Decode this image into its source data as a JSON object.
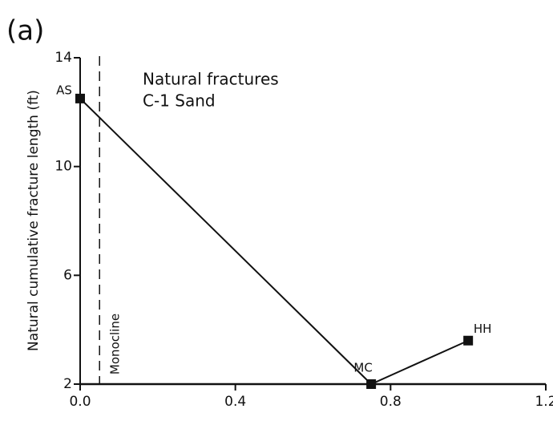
{
  "chart_data": {
    "type": "line",
    "panel_label": "(a)",
    "annotation": [
      "Natural fractures",
      "C-1 Sand"
    ],
    "y_label": "Natural cumulative fracture length (ft)",
    "x": [
      0,
      0.75,
      1.0
    ],
    "values": [
      12.5,
      2.0,
      3.6
    ],
    "point_labels": [
      "AS",
      "MC",
      "HH"
    ],
    "color": "#111111",
    "reference_line": {
      "x": 0.05,
      "label": "Monocline"
    },
    "xlim": [
      0,
      1.2
    ],
    "xticks": [
      {
        "value": 0,
        "label": "0.0"
      },
      0.4,
      0.8,
      1.2
    ],
    "ylim": [
      2,
      14
    ],
    "yticks": [
      2,
      6,
      10,
      14
    ]
  }
}
